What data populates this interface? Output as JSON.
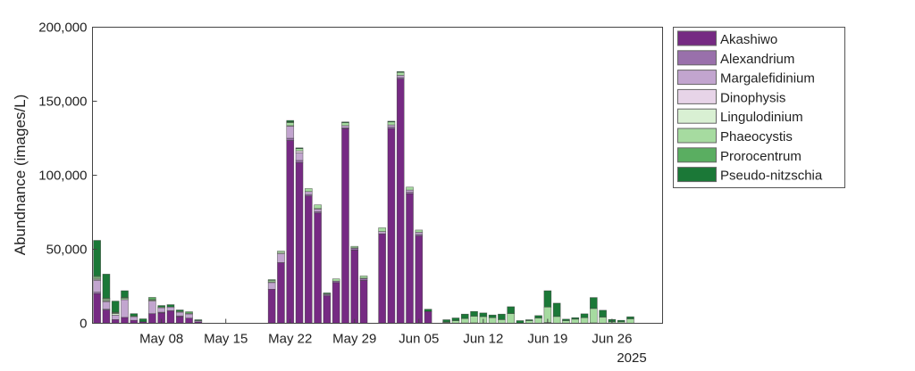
{
  "chart_data": {
    "type": "bar",
    "stacked": true,
    "title": "",
    "xlabel": "",
    "ylabel": "Abundnance (images/L)",
    "ylim": [
      0,
      200000
    ],
    "yticks": [
      0,
      50000,
      100000,
      150000,
      200000
    ],
    "ytick_labels": [
      "0",
      "50,000",
      "100,000",
      "150,000",
      "200,000"
    ],
    "xlim": [
      "2025-04-30T12:00",
      "2025-07-01T12:00"
    ],
    "xticks": [
      "2025-05-08",
      "2025-05-15",
      "2025-05-22",
      "2025-05-29",
      "2025-06-05",
      "2025-06-12",
      "2025-06-19",
      "2025-06-26"
    ],
    "xtick_labels": [
      "May 08",
      "May 15",
      "May 22",
      "May 29",
      "Jun 05",
      "Jun 12",
      "Jun 19",
      "Jun 26"
    ],
    "x_year_label": "2025",
    "grid": false,
    "legend_position": "outside-top-right",
    "dates": [
      "2025-05-01",
      "2025-05-02",
      "2025-05-03",
      "2025-05-04",
      "2025-05-05",
      "2025-05-06",
      "2025-05-07",
      "2025-05-08",
      "2025-05-09",
      "2025-05-10",
      "2025-05-11",
      "2025-05-12",
      "2025-05-20",
      "2025-05-21",
      "2025-05-22",
      "2025-05-23",
      "2025-05-24",
      "2025-05-25",
      "2025-05-26",
      "2025-05-27",
      "2025-05-28",
      "2025-05-29",
      "2025-05-30",
      "2025-06-01",
      "2025-06-02",
      "2025-06-03",
      "2025-06-04",
      "2025-06-05",
      "2025-06-06",
      "2025-06-08",
      "2025-06-09",
      "2025-06-10",
      "2025-06-11",
      "2025-06-12",
      "2025-06-13",
      "2025-06-14",
      "2025-06-15",
      "2025-06-16",
      "2025-06-17",
      "2025-06-18",
      "2025-06-19",
      "2025-06-20",
      "2025-06-21",
      "2025-06-22",
      "2025-06-23",
      "2025-06-24",
      "2025-06-25",
      "2025-06-26",
      "2025-06-27",
      "2025-06-28"
    ],
    "series": [
      {
        "name": "Akashiwo",
        "color": "#762a83",
        "values": [
          20000,
          9000,
          2500,
          4000,
          2000,
          1000,
          6500,
          7000,
          8500,
          4500,
          3500,
          1000,
          23000,
          41000,
          123500,
          108500,
          86000,
          74500,
          18500,
          27500,
          131500,
          49500,
          29000,
          60500,
          131500,
          165000,
          87500,
          59000,
          8000,
          400,
          0,
          200,
          300,
          0,
          0,
          0,
          0,
          0,
          0,
          0,
          500,
          0,
          0,
          0,
          0,
          300,
          0,
          0,
          0,
          0
        ]
      },
      {
        "name": "Alexandrium",
        "color": "#9970ab",
        "values": [
          1000,
          500,
          0,
          0,
          0,
          0,
          0,
          500,
          0,
          500,
          0,
          0,
          0,
          0,
          1500,
          1500,
          1000,
          1000,
          1000,
          1000,
          500,
          1000,
          1000,
          0,
          1000,
          1000,
          1000,
          1000,
          0,
          0,
          0,
          0,
          0,
          0,
          0,
          0,
          0,
          0,
          0,
          0,
          0,
          0,
          0,
          0,
          0,
          0,
          0,
          0,
          0,
          0
        ]
      },
      {
        "name": "Margalefidinium",
        "color": "#c2a5cf",
        "values": [
          8000,
          5000,
          3000,
          12000,
          2500,
          0,
          8500,
          3000,
          2500,
          2500,
          2800,
          800,
          4500,
          6000,
          8000,
          5000,
          2000,
          1500,
          0,
          0,
          1500,
          500,
          500,
          1500,
          1500,
          1500,
          1500,
          1500,
          0,
          0,
          0,
          0,
          0,
          0,
          0,
          0,
          0,
          0,
          0,
          0,
          0,
          0,
          0,
          0,
          0,
          0,
          0,
          0,
          0,
          0
        ]
      },
      {
        "name": "Dinophysis",
        "color": "#e7d4e8",
        "values": [
          500,
          500,
          0,
          0,
          0,
          0,
          0,
          0,
          0,
          0,
          0,
          0,
          0,
          0,
          500,
          1500,
          0,
          500,
          0,
          0,
          0,
          0,
          0,
          0,
          0,
          0,
          0,
          0,
          0,
          0,
          0,
          0,
          0,
          0,
          0,
          0,
          0,
          0,
          0,
          0,
          0,
          0,
          0,
          0,
          0,
          0,
          0,
          0,
          0,
          0
        ]
      },
      {
        "name": "Lingulodinium",
        "color": "#d9f0d3",
        "values": [
          500,
          500,
          1000,
          0,
          0,
          0,
          500,
          0,
          0,
          0,
          0,
          0,
          500,
          800,
          0,
          0,
          0,
          0,
          0,
          0,
          0,
          0,
          0,
          0,
          0,
          0,
          0,
          0,
          0,
          0,
          0,
          0,
          0,
          0,
          0,
          0,
          0,
          0,
          0,
          0,
          0,
          0,
          0,
          0,
          0,
          0,
          0,
          0,
          0,
          0
        ]
      },
      {
        "name": "Phaeocystis",
        "color": "#a6dba0",
        "values": [
          1000,
          1000,
          500,
          1000,
          0,
          0,
          500,
          500,
          0,
          500,
          500,
          0,
          1000,
          1000,
          2000,
          1500,
          2000,
          2500,
          500,
          1500,
          2000,
          1000,
          1500,
          2500,
          2000,
          2000,
          2000,
          1500,
          0,
          500,
          1800,
          3000,
          4500,
          4500,
          3800,
          2500,
          6600,
          0,
          1800,
          3600,
          10500,
          4600,
          1800,
          2800,
          3800,
          9700,
          4200,
          1000,
          1000,
          3000
        ]
      },
      {
        "name": "Prorocentrum",
        "color": "#5aae61",
        "values": [
          1000,
          500,
          500,
          500,
          500,
          0,
          1500,
          0,
          0,
          0,
          1000,
          0,
          500,
          0,
          500,
          0,
          0,
          0,
          0,
          0,
          0,
          0,
          0,
          0,
          0,
          0,
          0,
          0,
          0,
          0,
          0,
          0,
          0,
          0,
          0,
          0,
          0,
          0,
          0,
          0,
          0,
          0,
          0,
          0,
          0,
          0,
          0,
          0,
          0,
          0
        ]
      },
      {
        "name": "Pseudo-nitzschia",
        "color": "#1b7837",
        "values": [
          24000,
          16200,
          7500,
          4500,
          1500,
          2000,
          0,
          1000,
          1600,
          1000,
          0,
          600,
          0,
          0,
          1000,
          500,
          0,
          0,
          500,
          0,
          500,
          0,
          0,
          0,
          500,
          500,
          0,
          0,
          1500,
          1500,
          1800,
          3000,
          3200,
          2500,
          1800,
          3700,
          4600,
          1800,
          600,
          1600,
          11000,
          9000,
          1000,
          1000,
          2600,
          7400,
          4600,
          1600,
          1000,
          1400
        ]
      }
    ]
  }
}
